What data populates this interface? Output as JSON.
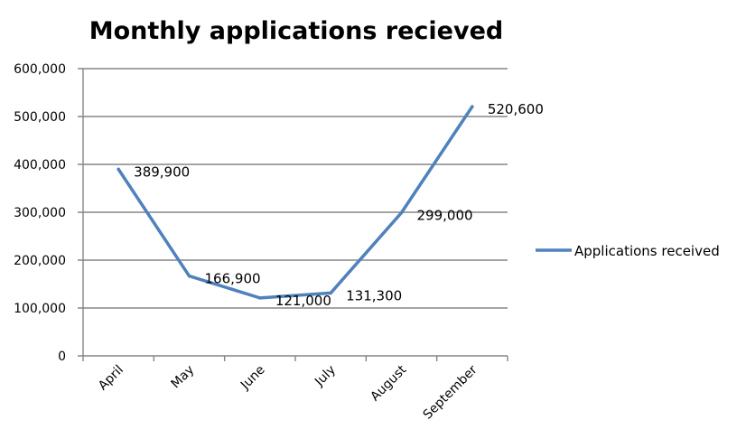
{
  "chart_data": {
    "type": "line",
    "title": "Monthly applications recieved",
    "xlabel": "",
    "ylabel": "",
    "categories": [
      "April",
      "May",
      "June",
      "July",
      "August",
      "September"
    ],
    "series": [
      {
        "name": "Applications received",
        "values": [
          389900,
          166900,
          121000,
          131300,
          299000,
          520600
        ],
        "labels": [
          "389,900",
          "166,900",
          "121,000",
          "131,300",
          "299,000",
          "520,600"
        ],
        "color": "#4F81BD"
      }
    ],
    "yticks": [
      "0",
      "100,000",
      "200,000",
      "300,000",
      "400,000",
      "500,000",
      "600,000"
    ],
    "ylim": [
      0,
      600000
    ],
    "grid": true,
    "legend": "right"
  }
}
